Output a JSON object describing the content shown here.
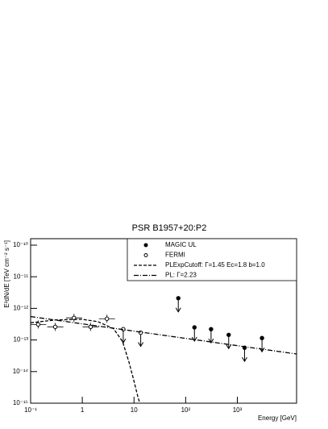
{
  "chart_data": {
    "type": "scatter",
    "title": "PSR B1957+20:P2",
    "x_label": "Energy [GeV]",
    "y_label": "E²dN/dE [TeV cm⁻² s⁻¹]",
    "xlog": true,
    "ylog": true,
    "xlim": [
      0.1,
      14000
    ],
    "ylim": [
      1e-15,
      1.6e-10
    ],
    "xticks": [
      {
        "value": 0.1,
        "label": "10⁻¹"
      },
      1,
      10,
      {
        "value": 100,
        "label": "10²"
      },
      {
        "value": 1000,
        "label": "10³"
      }
    ],
    "yticks": [
      {
        "value": 1e-15,
        "label": "10⁻¹⁵"
      },
      {
        "value": 1e-14,
        "label": "10⁻¹⁴"
      },
      {
        "value": 1e-13,
        "label": "10⁻¹³"
      },
      {
        "value": 1e-12,
        "label": "10⁻¹²"
      },
      {
        "value": 1e-11,
        "label": "10⁻¹¹"
      },
      {
        "value": 1e-10,
        "label": "10⁻¹⁰"
      }
    ],
    "legend": "top-right",
    "series": [
      {
        "name": "MAGIC UL",
        "marker": "filled",
        "upper_limit": true,
        "color": "#000000",
        "x": [
          72,
          148,
          310,
          680,
          1380,
          3000
        ],
        "values": [
          2.1e-12,
          2.5e-13,
          2.2e-13,
          1.45e-13,
          5.7e-14,
          1.15e-13
        ]
      },
      {
        "name": "FERMI",
        "marker": "open",
        "color": "#000000",
        "x": [
          0.14,
          0.3,
          0.69,
          1.45,
          3,
          6.2,
          13.5
        ],
        "values": [
          3.1e-13,
          2.6e-13,
          5e-13,
          2.6e-13,
          4.7e-13,
          2.2e-13,
          1.7e-13
        ]
      },
      {
        "name": "PLExpCutoff:  Γ=1.45  Ec=1.8  b=1.0",
        "marker": "line",
        "dash": "4,2",
        "color": "#000000",
        "x": [
          0.1,
          0.3,
          1,
          2,
          4,
          6,
          8,
          10,
          12,
          13
        ],
        "values": [
          3.5e-13,
          4.3e-13,
          4.5e-13,
          3.8e-13,
          2.3e-13,
          9e-14,
          2e-14,
          5e-15,
          1.5e-15,
          1e-15
        ]
      },
      {
        "name": "PL:  Γ=2.23",
        "marker": "line",
        "dash": "6,2,1,2",
        "color": "#000000",
        "x": [
          0.1,
          14000
        ],
        "values": [
          5.5e-13,
          3.6e-14
        ]
      }
    ]
  }
}
